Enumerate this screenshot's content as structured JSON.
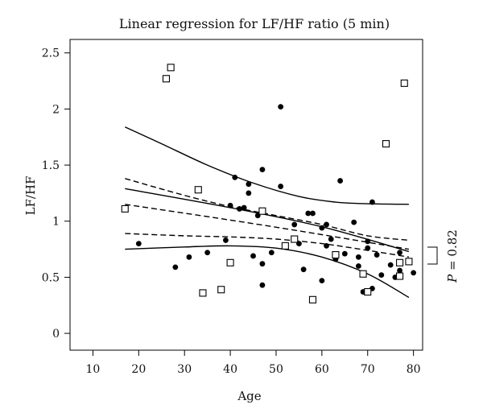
{
  "chart_data": {
    "type": "scatter",
    "title": "Linear regression for LF/HF ratio (5 min)",
    "xlabel": "Age",
    "ylabel": "LF/HF",
    "xlim": [
      5,
      82
    ],
    "ylim": [
      -0.15,
      2.62
    ],
    "xticks": [
      10,
      20,
      30,
      40,
      50,
      60,
      70,
      80
    ],
    "yticks": [
      0,
      0.5,
      1,
      1.5,
      2,
      2.5
    ],
    "grid": false,
    "legend": "none",
    "annotation": {
      "p_symbol": "P",
      "p_text": "= 0.82"
    },
    "series": [
      {
        "marker": "filled-circle",
        "color": "#000000",
        "points": [
          [
            20,
            0.8
          ],
          [
            28,
            0.59
          ],
          [
            31,
            0.68
          ],
          [
            35,
            0.72
          ],
          [
            39,
            0.83
          ],
          [
            40,
            1.14
          ],
          [
            41,
            1.39
          ],
          [
            42,
            1.11
          ],
          [
            43,
            1.12
          ],
          [
            44,
            1.25
          ],
          [
            44,
            1.33
          ],
          [
            45,
            0.69
          ],
          [
            46,
            1.05
          ],
          [
            47,
            1.46
          ],
          [
            47,
            0.62
          ],
          [
            47,
            0.43
          ],
          [
            49,
            0.72
          ],
          [
            51,
            2.02
          ],
          [
            51,
            1.31
          ],
          [
            54,
            0.97
          ],
          [
            55,
            0.8
          ],
          [
            56,
            0.57
          ],
          [
            57,
            1.07
          ],
          [
            58,
            1.07
          ],
          [
            60,
            0.94
          ],
          [
            60,
            0.47
          ],
          [
            61,
            0.97
          ],
          [
            61,
            0.78
          ],
          [
            62,
            0.84
          ],
          [
            63,
            0.66
          ],
          [
            64,
            1.36
          ],
          [
            65,
            0.71
          ],
          [
            67,
            0.99
          ],
          [
            68,
            0.68
          ],
          [
            68,
            0.6
          ],
          [
            69,
            0.37
          ],
          [
            70,
            0.82
          ],
          [
            70,
            0.76
          ],
          [
            71,
            0.4
          ],
          [
            71,
            1.17
          ],
          [
            72,
            0.7
          ],
          [
            73,
            0.52
          ],
          [
            75,
            0.61
          ],
          [
            76,
            0.5
          ],
          [
            77,
            0.56
          ],
          [
            77,
            0.72
          ],
          [
            80,
            0.54
          ]
        ]
      },
      {
        "marker": "open-square",
        "color": "#000000",
        "points": [
          [
            17,
            1.11
          ],
          [
            26,
            2.27
          ],
          [
            27,
            2.37
          ],
          [
            33,
            1.28
          ],
          [
            34,
            0.36
          ],
          [
            38,
            0.39
          ],
          [
            40,
            0.63
          ],
          [
            47,
            1.09
          ],
          [
            52,
            0.78
          ],
          [
            54,
            0.84
          ],
          [
            58,
            0.3
          ],
          [
            63,
            0.7
          ],
          [
            69,
            0.53
          ],
          [
            70,
            0.37
          ],
          [
            74,
            1.69
          ],
          [
            77,
            0.63
          ],
          [
            77,
            0.51
          ],
          [
            78,
            2.23
          ],
          [
            79,
            0.64
          ]
        ]
      }
    ],
    "lines": [
      {
        "role": "regression-1",
        "style": "solid",
        "points": [
          [
            17,
            1.29
          ],
          [
            40,
            1.12
          ],
          [
            60,
            0.95
          ],
          [
            79,
            0.73
          ]
        ]
      },
      {
        "role": "regression-1-upper-ci",
        "style": "solid",
        "points": [
          [
            17,
            1.84
          ],
          [
            25,
            1.69
          ],
          [
            35,
            1.5
          ],
          [
            45,
            1.34
          ],
          [
            55,
            1.22
          ],
          [
            63,
            1.17
          ],
          [
            70,
            1.155
          ],
          [
            79,
            1.15
          ]
        ]
      },
      {
        "role": "regression-1-lower-ci",
        "style": "solid",
        "points": [
          [
            17,
            0.75
          ],
          [
            30,
            0.77
          ],
          [
            40,
            0.78
          ],
          [
            50,
            0.76
          ],
          [
            60,
            0.68
          ],
          [
            70,
            0.53
          ],
          [
            79,
            0.32
          ]
        ]
      },
      {
        "role": "regression-2",
        "style": "dashed",
        "points": [
          [
            17,
            1.15
          ],
          [
            40,
            1.01
          ],
          [
            60,
            0.88
          ],
          [
            79,
            0.75
          ]
        ]
      },
      {
        "role": "regression-2-upper-ci",
        "style": "dashed",
        "points": [
          [
            17,
            1.38
          ],
          [
            30,
            1.23
          ],
          [
            40,
            1.13
          ],
          [
            50,
            1.05
          ],
          [
            60,
            0.97
          ],
          [
            70,
            0.87
          ],
          [
            79,
            0.83
          ]
        ]
      },
      {
        "role": "regression-2-lower-ci",
        "style": "dashed",
        "points": [
          [
            17,
            0.89
          ],
          [
            30,
            0.87
          ],
          [
            40,
            0.86
          ],
          [
            50,
            0.84
          ],
          [
            60,
            0.8
          ],
          [
            70,
            0.74
          ],
          [
            79,
            0.68
          ]
        ]
      }
    ]
  }
}
